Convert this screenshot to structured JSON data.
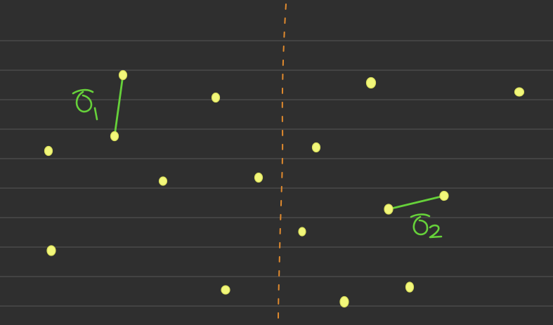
{
  "colors": {
    "background": "#2f2f2f",
    "ruled_lines": "#4a4a4a",
    "divider": "#e08a2e",
    "points": "#f2f77a",
    "annotations": "#66d13a"
  },
  "annotations": {
    "delta_1": "δ₁",
    "delta_2": "δ₂"
  }
}
